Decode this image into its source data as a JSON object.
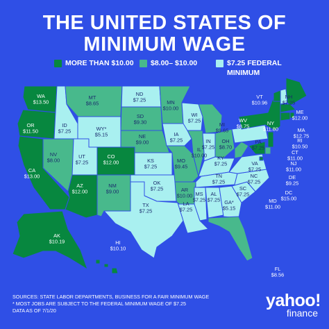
{
  "title_line1": "THE UNITED STATES OF",
  "title_line2": "MINIMUM WAGE",
  "legend": [
    {
      "label": "MORE THAN $10.00",
      "color": "#07873f"
    },
    {
      "label": "$8.00– $10.00",
      "color": "#48b98c"
    },
    {
      "label": "$7.25 FEDERAL MINIMUM",
      "color": "#a9f0f0"
    }
  ],
  "states": [
    {
      "code": "WA",
      "wage": "$13.50",
      "tier": 0
    },
    {
      "code": "OR",
      "wage": "$11.50",
      "tier": 0
    },
    {
      "code": "CA",
      "wage": "$13.00",
      "tier": 0
    },
    {
      "code": "ID",
      "wage": "$7.25",
      "tier": 2
    },
    {
      "code": "NV",
      "wage": "$8.00",
      "tier": 1
    },
    {
      "code": "MT",
      "wage": "$8.65",
      "tier": 1
    },
    {
      "code": "WY*",
      "wage": "$5.15",
      "tier": 2
    },
    {
      "code": "UT",
      "wage": "$7.25",
      "tier": 2
    },
    {
      "code": "AZ",
      "wage": "$12.00",
      "tier": 0
    },
    {
      "code": "CO",
      "wage": "$12.00",
      "tier": 0
    },
    {
      "code": "NM",
      "wage": "$9.00",
      "tier": 1
    },
    {
      "code": "ND",
      "wage": "$7.25",
      "tier": 2
    },
    {
      "code": "SD",
      "wage": "$9.30",
      "tier": 1
    },
    {
      "code": "NE",
      "wage": "$9.00",
      "tier": 1
    },
    {
      "code": "KS",
      "wage": "$7.25",
      "tier": 2
    },
    {
      "code": "OK",
      "wage": "$7.25",
      "tier": 2
    },
    {
      "code": "TX",
      "wage": "$7.25",
      "tier": 2
    },
    {
      "code": "MN",
      "wage": "$10.00",
      "tier": 1
    },
    {
      "code": "IA",
      "wage": "$7.25",
      "tier": 2
    },
    {
      "code": "MO",
      "wage": "$9.45",
      "tier": 1
    },
    {
      "code": "AR",
      "wage": "$10.00",
      "tier": 1
    },
    {
      "code": "LA",
      "wage": "$7.25",
      "tier": 2
    },
    {
      "code": "WI",
      "wage": "$7.25",
      "tier": 2
    },
    {
      "code": "IL",
      "wage": "$10.00",
      "tier": 1
    },
    {
      "code": "MI",
      "wage": "$9.65",
      "tier": 1
    },
    {
      "code": "IN",
      "wage": "$7.25",
      "tier": 2
    },
    {
      "code": "OH",
      "wage": "$8.70",
      "tier": 1
    },
    {
      "code": "KY",
      "wage": "$7.25",
      "tier": 2
    },
    {
      "code": "TN",
      "wage": "$7.25",
      "tier": 2
    },
    {
      "code": "MS",
      "wage": "$7.25",
      "tier": 2
    },
    {
      "code": "AL",
      "wage": "$7.25",
      "tier": 2
    },
    {
      "code": "GA*",
      "wage": "$5.15",
      "tier": 2
    },
    {
      "code": "FL",
      "wage": "$8.56",
      "tier": 1
    },
    {
      "code": "SC",
      "wage": "$7.25",
      "tier": 2
    },
    {
      "code": "NC",
      "wage": "$7.25",
      "tier": 2
    },
    {
      "code": "VA",
      "wage": "$7.25",
      "tier": 2
    },
    {
      "code": "WV",
      "wage": "$8.75",
      "tier": 1
    },
    {
      "code": "PA",
      "wage": "$7.25",
      "tier": 2
    },
    {
      "code": "NY",
      "wage": "$11.80",
      "tier": 0
    },
    {
      "code": "VT",
      "wage": "$10.96",
      "tier": 0
    },
    {
      "code": "NH",
      "wage": "$7.25",
      "tier": 2
    },
    {
      "code": "ME",
      "wage": "$12.00",
      "tier": 0
    },
    {
      "code": "MA",
      "wage": "$12.75",
      "tier": 0
    },
    {
      "code": "RI",
      "wage": "$10.50",
      "tier": 0
    },
    {
      "code": "CT",
      "wage": "$11.00",
      "tier": 0
    },
    {
      "code": "NJ",
      "wage": "$11.00",
      "tier": 0
    },
    {
      "code": "DE",
      "wage": "$9.25",
      "tier": 1
    },
    {
      "code": "MD",
      "wage": "$11.00",
      "tier": 0
    },
    {
      "code": "DC",
      "wage": "$15.00",
      "tier": 0
    },
    {
      "code": "AK",
      "wage": "$10.19",
      "tier": 0
    },
    {
      "code": "HI",
      "wage": "$10.10",
      "tier": 0
    }
  ],
  "footer": {
    "line1": "SOURCES: STATE LABOR DEPARTMENTS, BUSINESS FOR A FAIR MINIMUM WAGE",
    "line2": "* MOST JOBS ARE SUBJECT TO THE FEDERAL MINIMUM WAGE OF $7.25",
    "line3": "DATA AS OF 7/1/20"
  },
  "brand": {
    "word": "yahoo!",
    "sub": "finance"
  },
  "colors": {
    "background": "#2f4fe6",
    "border": "#2f4fe6"
  }
}
